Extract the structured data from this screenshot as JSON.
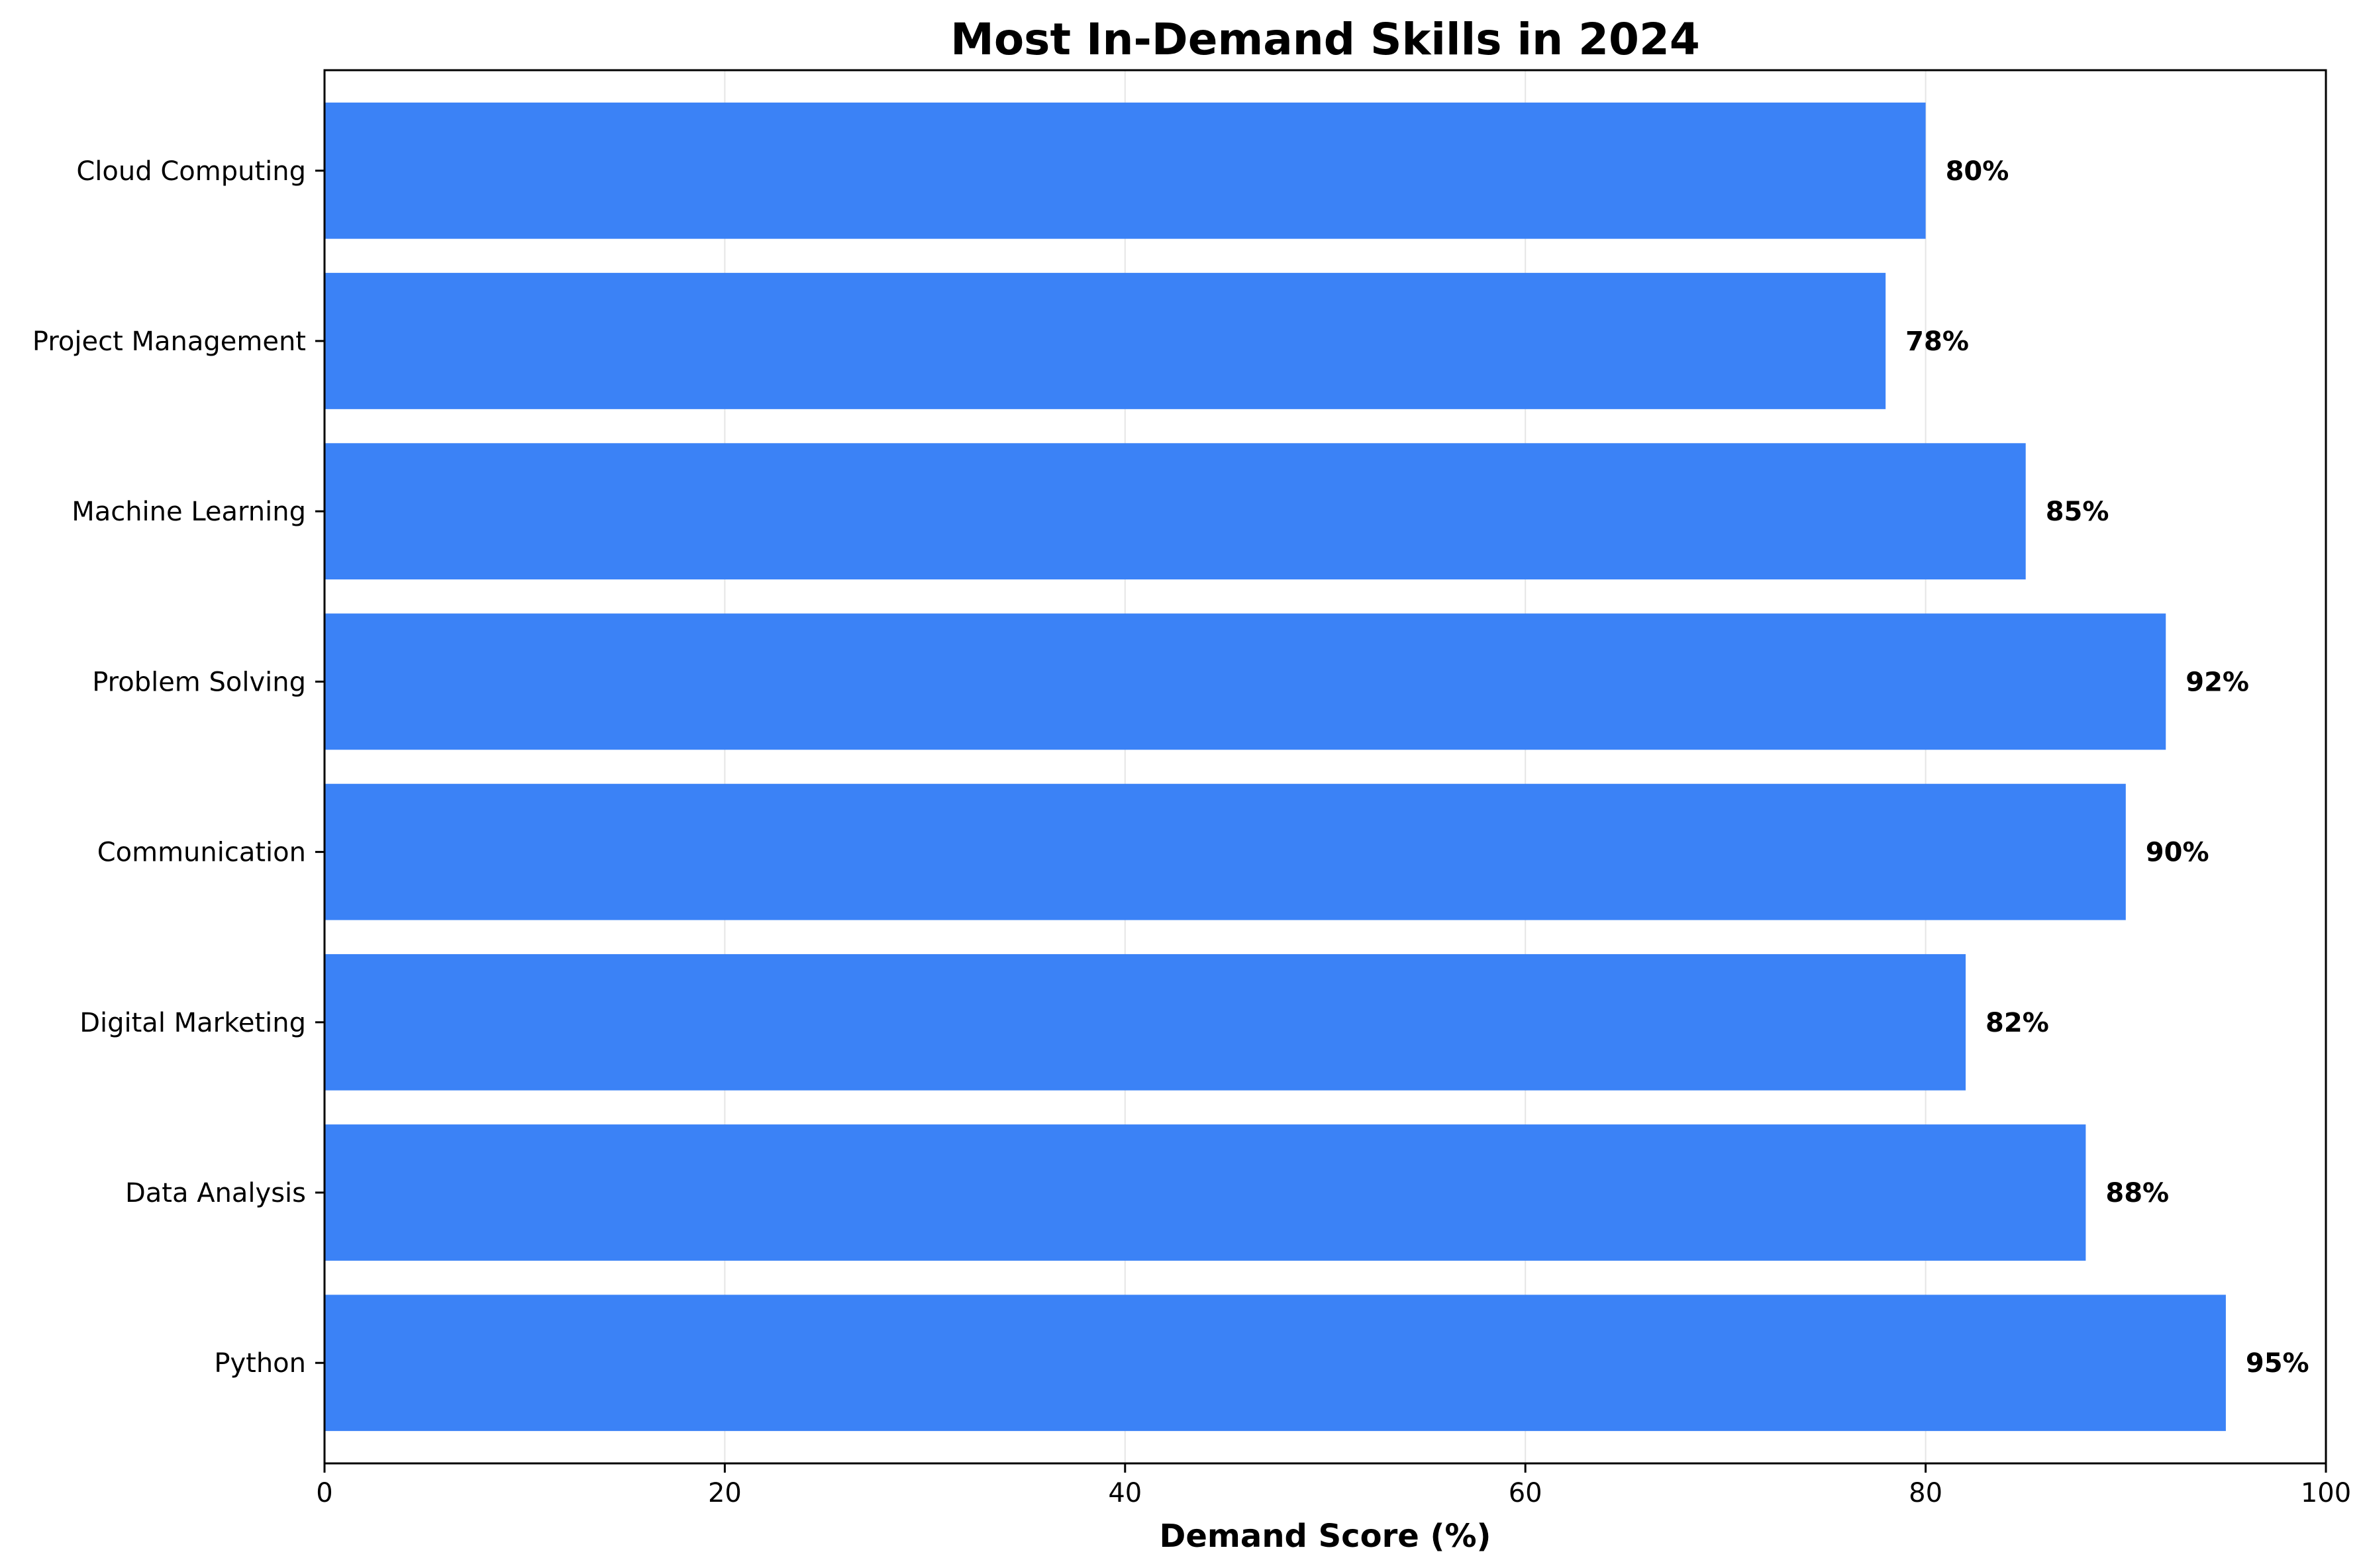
{
  "chart_data": {
    "type": "bar",
    "orientation": "horizontal",
    "title": "Most In-Demand Skills in 2024",
    "xlabel": "Demand Score (%)",
    "ylabel": "",
    "xlim": [
      0,
      100
    ],
    "xticks": [
      0,
      20,
      40,
      60,
      80,
      100
    ],
    "xtick_labels": [
      "0",
      "20",
      "40",
      "60",
      "80",
      "100"
    ],
    "grid": "vertical",
    "bar_color": "#3b82f6",
    "categories": [
      "Python",
      "Data Analysis",
      "Digital Marketing",
      "Communication",
      "Problem Solving",
      "Machine Learning",
      "Project Management",
      "Cloud Computing"
    ],
    "values": [
      95,
      88,
      82,
      90,
      92,
      85,
      78,
      80
    ],
    "data_labels": [
      "95%",
      "88%",
      "82%",
      "90%",
      "92%",
      "85%",
      "78%",
      "80%"
    ]
  }
}
